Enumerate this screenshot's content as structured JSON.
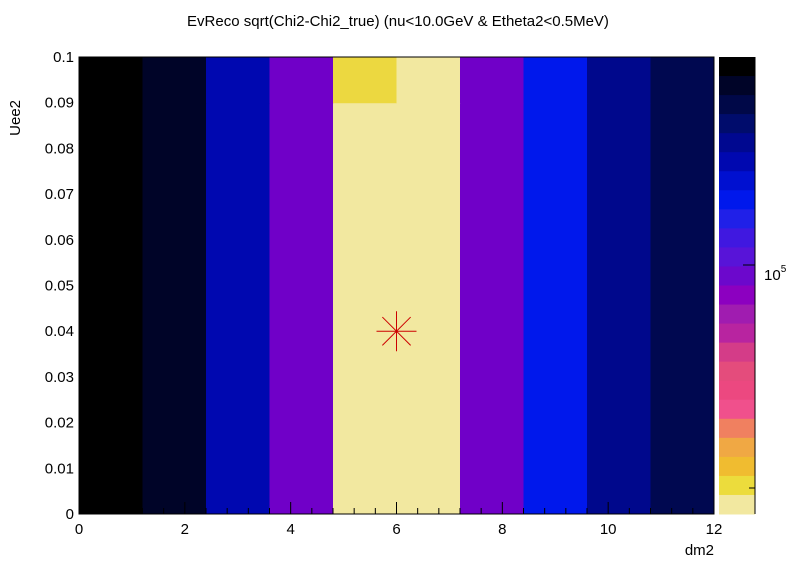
{
  "chart_data": {
    "type": "heatmap",
    "title": "EvReco sqrt(Chi2-Chi2_true) (nu<10.0GeV & Etheta2<0.5MeV)",
    "xlabel": "dm2",
    "ylabel": "Uee2",
    "xlim": [
      0,
      12
    ],
    "ylim": [
      0,
      0.1
    ],
    "x_ticks": [
      "0",
      "2",
      "4",
      "6",
      "8",
      "10",
      "12"
    ],
    "y_ticks": [
      "0",
      "0.01",
      "0.02",
      "0.03",
      "0.04",
      "0.05",
      "0.06",
      "0.07",
      "0.08",
      "0.09",
      "0.1"
    ],
    "x_edges": [
      0,
      1.2,
      2.4,
      3.6,
      4.8,
      6.0,
      7.2,
      8.4,
      9.6,
      10.8,
      12.0
    ],
    "y_edges": [
      0,
      0.09,
      0.1
    ],
    "cell_colors": [
      [
        "#000000",
        "#000428",
        "#0008b0",
        "#7000c8",
        "#f2e8a0",
        "#f2e8a0",
        "#7000c8",
        "#0018ec",
        "#00088c",
        "#000850"
      ],
      [
        "#000000",
        "#000428",
        "#0008b0",
        "#7000c8",
        "#ecd840",
        "#f2e8a0",
        "#7000c8",
        "#0018ec",
        "#00088c",
        "#000850"
      ]
    ],
    "marker": {
      "x": 6,
      "y": 0.04,
      "symbol": "star",
      "color": "#cc0000"
    },
    "colorbar": {
      "scale": "log",
      "label": "10",
      "label_exponent": "5",
      "colors": [
        "#000000",
        "#000428",
        "#000848",
        "#000c6c",
        "#000890",
        "#0008b0",
        "#0010d0",
        "#0018ec",
        "#2020e8",
        "#4018e0",
        "#5814d8",
        "#6c08cc",
        "#8c00c0",
        "#a01cb0",
        "#b824a0",
        "#d43c88",
        "#e44c7c",
        "#ec4880",
        "#f0508c",
        "#f08060",
        "#f0a844",
        "#f0bc30",
        "#ecdc3c",
        "#f2e8a0"
      ]
    }
  }
}
